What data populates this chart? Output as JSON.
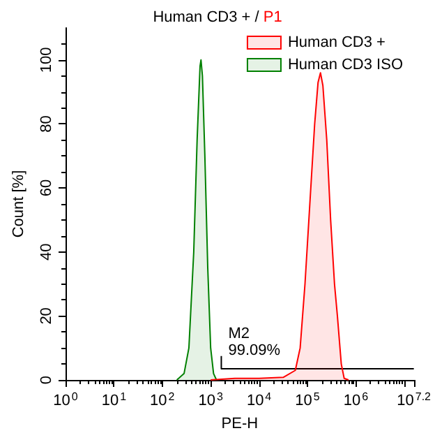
{
  "chart_data": {
    "type": "area",
    "title": "Human CD3 + / P1",
    "xlabel": "PE-H",
    "ylabel": "Count [%]",
    "log": "x",
    "xlim": [
      1,
      15848932
    ],
    "xticks": [
      {
        "value": 1,
        "label": "10$^{0}$"
      },
      {
        "value": 10,
        "label": "10$^{1}$"
      },
      {
        "value": 100,
        "label": "10$^{2}$"
      },
      {
        "value": 1000,
        "label": "10$^{3}$"
      },
      {
        "value": 10000,
        "label": "10$^{4}$"
      },
      {
        "value": 100000,
        "label": "10$^{5}$"
      },
      {
        "value": 1000000,
        "label": "10$^{6}$"
      },
      {
        "value": 10000000,
        "label": null
      },
      {
        "value": 15848932,
        "label": "10$^{7.2}$"
      }
    ],
    "ylim": [
      0,
      110
    ],
    "yticks": [
      0,
      20,
      40,
      60,
      80,
      100
    ],
    "grid": false,
    "legend": "top right",
    "marker": "none",
    "line_style": "solid",
    "series": [
      {
        "name": "Human CD3 +",
        "color": "#ff0000",
        "x": [
          1000,
          3162,
          10000,
          31623,
          56234,
          70795,
          89125,
          112202,
          141254,
          165959,
          186209,
          208930,
          251189,
          301995,
          363078,
          416869,
          501187,
          575440,
          707946
        ],
        "values": [
          0,
          0.5,
          0.5,
          0.8,
          3,
          10,
          30,
          55,
          80,
          93,
          96,
          92,
          75,
          50,
          30,
          20,
          5,
          0.5,
          0
        ]
      },
      {
        "name": "Human CD3 ISO",
        "color": "#008000",
        "x": [
          200,
          282,
          355,
          447,
          525,
          603,
          631,
          676,
          759,
          871,
          1000,
          1148,
          1318
        ],
        "values": [
          0,
          2,
          10,
          40,
          75,
          98,
          100,
          95,
          70,
          35,
          10,
          2,
          0
        ]
      },
      {
        "type": "line",
        "color": "#000000",
        "x": [
          1660,
          1660,
          15848932
        ],
        "values": [
          7.5,
          3.5,
          3.5
        ]
      }
    ],
    "annotations": [
      {
        "text": "M2",
        "x": 1660,
        "y": 7.5
      },
      {
        "text": "99.09%",
        "x": 1660,
        "y": 7.5
      }
    ]
  }
}
